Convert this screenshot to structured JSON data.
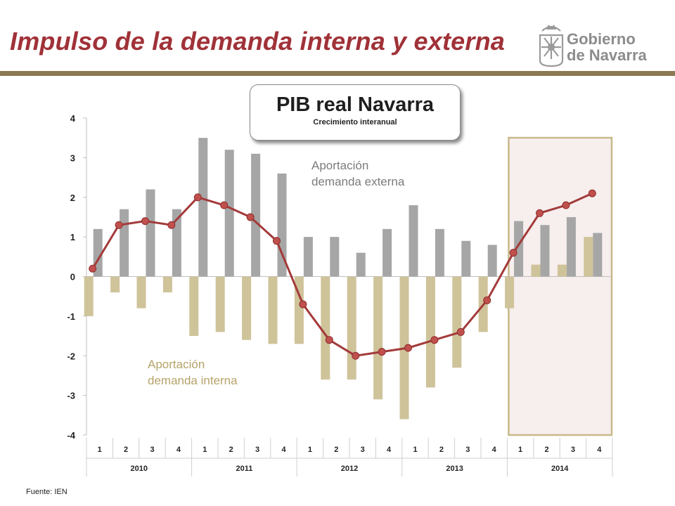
{
  "slide": {
    "title": "Impulso de la demanda interna y externa",
    "source": "Fuente: IEN"
  },
  "logo": {
    "line1": "Gobierno",
    "line2": "de Navarra",
    "icon": "navarra-coat-of-arms-icon"
  },
  "box": {
    "title": "PIB real Navarra",
    "subtitle": "Crecimiento interanual"
  },
  "annotations": {
    "external": [
      "Aportación",
      "demanda externa"
    ],
    "internal": [
      "Aportación",
      "demanda interna"
    ]
  },
  "colors": {
    "title": "#a03238",
    "rule": "#8b7a52",
    "external_bar": "#a6a6a6",
    "internal_bar": "#cfc39a",
    "line": "#a33a3a",
    "highlight_border": "#c8b98a",
    "highlight_fill": "#f7eeee"
  },
  "chart_data": {
    "type": "bar",
    "quarters": [
      "1",
      "2",
      "3",
      "4",
      "1",
      "2",
      "3",
      "4",
      "1",
      "2",
      "3",
      "4",
      "1",
      "2",
      "3",
      "4",
      "1",
      "2",
      "3",
      "4"
    ],
    "years": [
      "2010",
      "2011",
      "2012",
      "2013",
      "2014"
    ],
    "ylim": [
      -4,
      4
    ],
    "yticks": [
      "4",
      "3",
      "2",
      "1",
      "0",
      "-1",
      "-2",
      "-3",
      "-4"
    ],
    "grid": false,
    "series": [
      {
        "name": "Aportación demanda externa",
        "kind": "bar",
        "values": [
          1.2,
          1.7,
          2.2,
          1.7,
          3.5,
          3.2,
          3.1,
          2.6,
          1.0,
          1.0,
          0.6,
          1.2,
          1.8,
          1.2,
          0.9,
          0.8,
          1.4,
          1.3,
          1.5,
          1.1
        ]
      },
      {
        "name": "Aportación demanda interna",
        "kind": "bar",
        "values": [
          -1.0,
          -0.4,
          -0.8,
          -0.4,
          -1.5,
          -1.4,
          -1.6,
          -1.7,
          -1.7,
          -2.6,
          -2.6,
          -3.1,
          -3.6,
          -2.8,
          -2.3,
          -1.4,
          -0.8,
          0.3,
          0.3,
          1.0
        ]
      },
      {
        "name": "PIB real Navarra",
        "kind": "line",
        "values": [
          0.2,
          1.3,
          1.4,
          1.3,
          2.0,
          1.8,
          1.5,
          0.9,
          -0.7,
          -1.6,
          -2.0,
          -1.9,
          -1.8,
          -1.6,
          -1.4,
          -0.6,
          0.6,
          1.6,
          1.8,
          2.1
        ]
      }
    ],
    "highlight": "2014 Q1–Q4"
  }
}
